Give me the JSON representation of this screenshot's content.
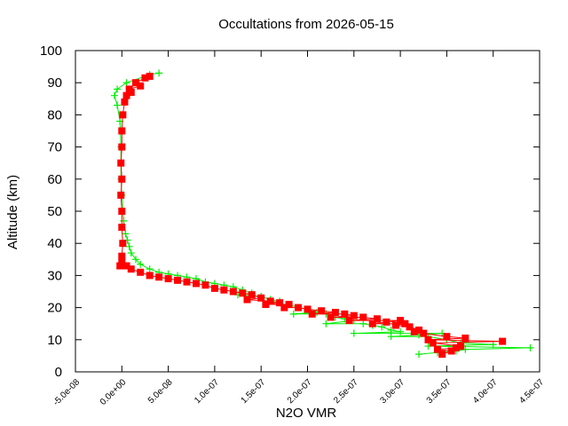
{
  "chart_data": {
    "type": "scatter",
    "title": "Occultations from 2026-05-15",
    "xlabel": "N2O VMR",
    "ylabel": "Altitude (km)",
    "xlim": [
      -5e-08,
      4.5e-07
    ],
    "ylim": [
      0,
      100
    ],
    "x_ticks": [
      "-5.0e-08",
      "0.0e+00",
      "5.0e-08",
      "1.0e-07",
      "1.5e-07",
      "2.0e-07",
      "2.5e-07",
      "3.0e-07",
      "3.5e-07",
      "4.0e-07",
      "4.5e-07"
    ],
    "y_ticks": [
      "0",
      "10",
      "20",
      "30",
      "40",
      "50",
      "60",
      "70",
      "80",
      "90",
      "100"
    ],
    "grid": false,
    "legend": "none",
    "series": [
      {
        "color": "#00ee00",
        "marker": "plus",
        "points": [
          [
            4.4e-07,
            7.5
          ],
          [
            4e-07,
            8.5
          ],
          [
            3.65e-07,
            9
          ],
          [
            3.6e-07,
            6.5
          ],
          [
            3.4e-07,
            6
          ],
          [
            3.2e-07,
            5.5
          ],
          [
            3.5e-07,
            10
          ],
          [
            3.45e-07,
            12
          ],
          [
            3.3e-07,
            11
          ],
          [
            3.2e-07,
            11.5
          ],
          [
            3e-07,
            12.5
          ],
          [
            2.9e-07,
            13
          ],
          [
            2.8e-07,
            14
          ],
          [
            2.7e-07,
            14.5
          ],
          [
            2.6e-07,
            15
          ],
          [
            2.5e-07,
            16
          ],
          [
            2.4e-07,
            16.5
          ],
          [
            2.3e-07,
            17
          ],
          [
            2.2e-07,
            18
          ],
          [
            2.1e-07,
            18.5
          ],
          [
            2e-07,
            19.5
          ],
          [
            1.9e-07,
            20
          ],
          [
            1.8e-07,
            21
          ],
          [
            1.7e-07,
            22
          ],
          [
            1.6e-07,
            22.5
          ],
          [
            1.5e-07,
            23.5
          ],
          [
            1.4e-07,
            24.5
          ],
          [
            1.3e-07,
            25.5
          ],
          [
            1.2e-07,
            26.5
          ],
          [
            1.1e-07,
            27
          ],
          [
            1e-07,
            27.5
          ],
          [
            9e-08,
            28
          ],
          [
            8e-08,
            29
          ],
          [
            7e-08,
            29.5
          ],
          [
            6e-08,
            30
          ],
          [
            5e-08,
            30.5
          ],
          [
            4e-08,
            31
          ],
          [
            3e-08,
            32
          ],
          [
            2e-08,
            33.5
          ],
          [
            1.5e-08,
            35
          ],
          [
            1e-08,
            37
          ],
          [
            8e-09,
            39
          ],
          [
            6e-09,
            41
          ],
          [
            4e-09,
            43
          ],
          [
            2e-09,
            47
          ],
          [
            0,
            55
          ],
          [
            -1e-09,
            60
          ],
          [
            -1e-09,
            70
          ],
          [
            -2e-09,
            78
          ],
          [
            -5e-09,
            83
          ],
          [
            -8e-09,
            86
          ],
          [
            -5e-09,
            88
          ],
          [
            5e-09,
            90
          ],
          [
            3e-08,
            92.5
          ],
          [
            4e-08,
            93
          ],
          [
            2.5e-07,
            12
          ],
          [
            2.2e-07,
            15
          ],
          [
            1.85e-07,
            18
          ],
          [
            1.55e-07,
            21
          ],
          [
            1.25e-07,
            24
          ],
          [
            3.7e-07,
            7
          ],
          [
            3.3e-07,
            8
          ],
          [
            2.9e-07,
            11
          ]
        ]
      },
      {
        "color": "#ff0000",
        "marker": "square",
        "points": [
          [
            4.1e-07,
            9.5
          ],
          [
            3.7e-07,
            10.5
          ],
          [
            3.65e-07,
            8
          ],
          [
            3.6e-07,
            7.5
          ],
          [
            3.55e-07,
            6.5
          ],
          [
            3.45e-07,
            5.5
          ],
          [
            3.4e-07,
            7
          ],
          [
            3.35e-07,
            9
          ],
          [
            3.3e-07,
            10
          ],
          [
            3.25e-07,
            12
          ],
          [
            3.2e-07,
            13
          ],
          [
            3.1e-07,
            14
          ],
          [
            3.05e-07,
            15
          ],
          [
            3e-07,
            16
          ],
          [
            2.85e-07,
            15.5
          ],
          [
            2.75e-07,
            16.5
          ],
          [
            2.6e-07,
            17
          ],
          [
            2.5e-07,
            17.5
          ],
          [
            2.4e-07,
            18
          ],
          [
            2.3e-07,
            18.5
          ],
          [
            2.15e-07,
            19
          ],
          [
            2e-07,
            19.5
          ],
          [
            1.9e-07,
            20
          ],
          [
            1.8e-07,
            21
          ],
          [
            1.7e-07,
            21.5
          ],
          [
            1.6e-07,
            22
          ],
          [
            1.5e-07,
            23
          ],
          [
            1.4e-07,
            24
          ],
          [
            1.3e-07,
            24.5
          ],
          [
            1.2e-07,
            25
          ],
          [
            1.1e-07,
            25.5
          ],
          [
            1e-07,
            26
          ],
          [
            9e-08,
            27
          ],
          [
            8e-08,
            27.5
          ],
          [
            7e-08,
            28
          ],
          [
            6e-08,
            28.5
          ],
          [
            5e-08,
            29
          ],
          [
            4e-08,
            29.5
          ],
          [
            3e-08,
            30
          ],
          [
            2e-08,
            31
          ],
          [
            1e-08,
            32
          ],
          [
            5e-09,
            33
          ],
          [
            0,
            34
          ],
          [
            -2e-09,
            33
          ],
          [
            0,
            36
          ],
          [
            1e-09,
            40
          ],
          [
            0,
            45
          ],
          [
            0,
            50
          ],
          [
            -1e-09,
            55
          ],
          [
            0,
            60
          ],
          [
            -1e-09,
            65
          ],
          [
            0,
            70
          ],
          [
            0,
            75
          ],
          [
            1e-09,
            80
          ],
          [
            3e-09,
            84
          ],
          [
            5e-09,
            86
          ],
          [
            8e-09,
            88
          ],
          [
            1.5e-08,
            90
          ],
          [
            2.5e-08,
            91.5
          ],
          [
            3e-08,
            92
          ],
          [
            2e-08,
            89
          ],
          [
            1e-08,
            87
          ],
          [
            3.5e-07,
            11
          ],
          [
            3.15e-07,
            12.5
          ],
          [
            2.95e-07,
            14.5
          ],
          [
            2.7e-07,
            15
          ],
          [
            2.45e-07,
            16
          ],
          [
            2.25e-07,
            17
          ],
          [
            2.05e-07,
            18
          ],
          [
            1.75e-07,
            20
          ],
          [
            1.55e-07,
            21
          ],
          [
            1.35e-07,
            22.5
          ]
        ]
      }
    ]
  }
}
